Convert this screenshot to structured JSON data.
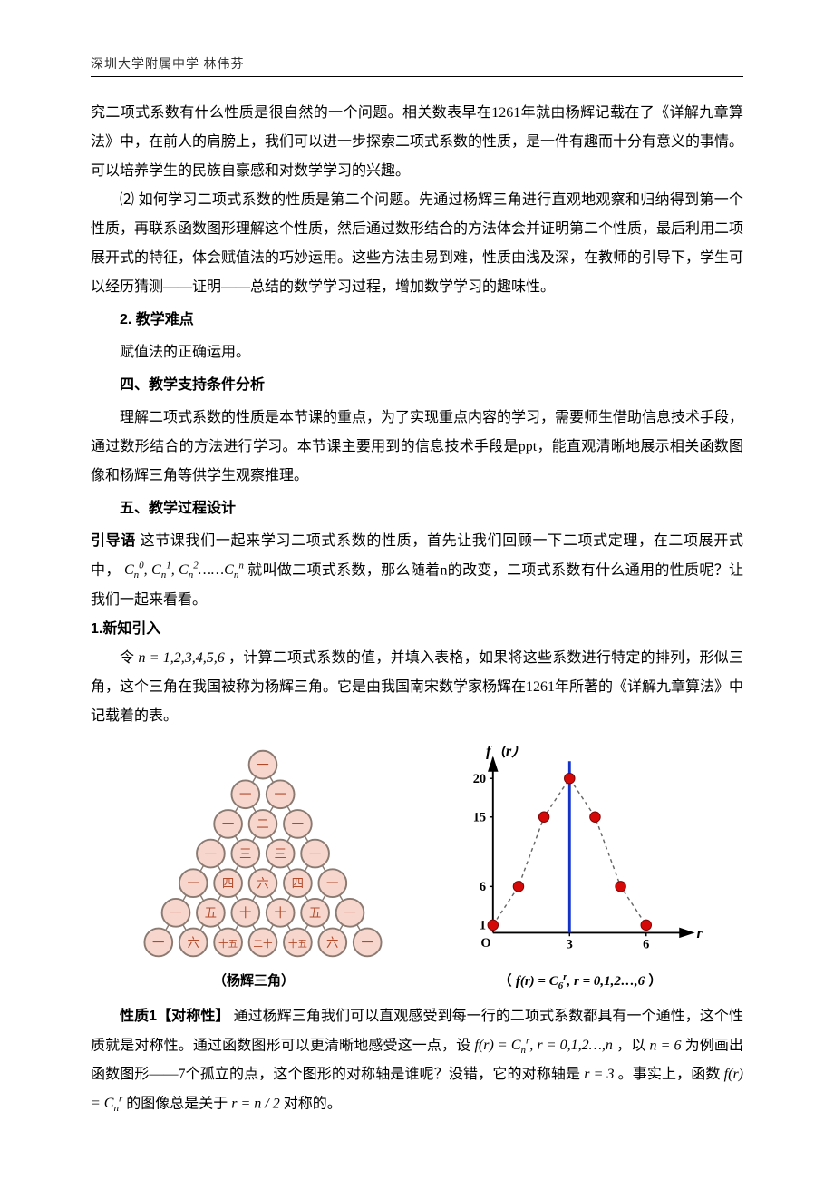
{
  "header": "深圳大学附属中学  林伟芬",
  "p1": "究二项式系数有什么性质是很自然的一个问题。相关数表早在1261年就由杨辉记载在了《详解九章算法》中，在前人的肩膀上，我们可以进一步探索二项式系数的性质，是一件有趣而十分有意义的事情。可以培养学生的民族自豪感和对数学学习的兴趣。",
  "p2": "⑵  如何学习二项式系数的性质是第二个问题。先通过杨辉三角进行直观地观察和归纳得到第一个性质，再联系函数图形理解这个性质，然后通过数形结合的方法体会并证明第二个性质，最后利用二项展开式的特征，体会赋值法的巧妙运用。这些方法由易到难，性质由浅及深，在教师的引导下，学生可以经历猜测——证明——总结的数学学习过程，增加数学学习的趣味性。",
  "s2_title": "2.  教学难点",
  "s2_body": "赋值法的正确运用。",
  "s4_title": "四、教学支持条件分析",
  "s4_body": "理解二项式系数的性质是本节课的重点，为了实现重点内容的学习，需要师生借助信息技术手段，通过数形结合的方法进行学习。本节课主要用到的信息技术手段是ppt，能直观清晰地展示相关函数图像和杨辉三角等供学生观察推理。",
  "s5_title": "五、教学过程设计",
  "lead_label": "引导语",
  "lead_a": " 这节课我们一起来学习二项式系数的性质，首先让我们回顾一下二项式定理，在二项展开式中， ",
  "lead_b": " 就叫做二项式系数，那么随着n的改变，二项式系数有什么通用的性质呢？让我们一起来看看。",
  "newknow_title": "1.新知引入",
  "new_a": "令 ",
  "new_b": " ，计算二项式系数的值，并填入表格，如果将这些系数进行特定的排列，形似三角，这个三角在我国被称为杨辉三角。它是由我国南宋数学家杨辉在1261年所著的《详解九章算法》中记载着的表。",
  "caption_left": "（杨辉三角）",
  "caption_right_a": "（ ",
  "caption_right_b": " ）",
  "prop_label": "性质1【对称性】",
  "prop_a": "      通过杨辉三角我们可以直观感受到每一行的二项式系数都具有一个通性，这个性质就是对称性。通过函数图形可以更清晰地感受这一点，设 ",
  "prop_b": " ，以 ",
  "prop_c": " 为例画出函数图形——7个孤立的点，这个图形的对称轴是谁呢？没错，它的对称轴是 ",
  "prop_d": " 。事实上，函数 ",
  "prop_e": " 的图像总是关于 ",
  "prop_f": " 对称的。",
  "pascal": {
    "labels": [
      "一",
      "二",
      "三",
      "四",
      "五",
      "六",
      "十",
      "十五",
      "二十"
    ],
    "node_fill": "#f7d7cd",
    "node_stroke": "#8a7a72",
    "node_r": 16,
    "text_color": "#b24a2a",
    "edge_color": "#8a7a72",
    "rows": [
      [
        [
          155,
          22,
          "一"
        ]
      ],
      [
        [
          135,
          56,
          "一"
        ],
        [
          175,
          56,
          "一"
        ]
      ],
      [
        [
          115,
          90,
          "一"
        ],
        [
          155,
          90,
          "二"
        ],
        [
          195,
          90,
          "一"
        ]
      ],
      [
        [
          95,
          124,
          "一"
        ],
        [
          135,
          124,
          "三"
        ],
        [
          175,
          124,
          "三"
        ],
        [
          215,
          124,
          "一"
        ]
      ],
      [
        [
          75,
          158,
          "一"
        ],
        [
          115,
          158,
          "四"
        ],
        [
          155,
          158,
          "六"
        ],
        [
          195,
          158,
          "四"
        ],
        [
          235,
          158,
          "一"
        ]
      ],
      [
        [
          55,
          192,
          "一"
        ],
        [
          95,
          192,
          "五"
        ],
        [
          135,
          192,
          "十"
        ],
        [
          175,
          192,
          "十"
        ],
        [
          215,
          192,
          "五"
        ],
        [
          255,
          192,
          "一"
        ]
      ],
      [
        [
          35,
          226,
          "一"
        ],
        [
          75,
          226,
          "六"
        ],
        [
          115,
          226,
          "十五"
        ],
        [
          155,
          226,
          "二十"
        ],
        [
          195,
          226,
          "十五"
        ],
        [
          235,
          226,
          "六"
        ],
        [
          275,
          226,
          "一"
        ]
      ]
    ]
  },
  "graph": {
    "axis_color": "#000000",
    "grid_bg": "#ffffff",
    "sym_line_color": "#1332c8",
    "point_fill": "#d60909",
    "point_stroke": "#7a0404",
    "dash_color": "#666666",
    "y_title": "f（r）",
    "x_title": "r",
    "y_ticks": [
      {
        "v": 1,
        "label": "1"
      },
      {
        "v": 6,
        "label": "6"
      },
      {
        "v": 15,
        "label": "15"
      },
      {
        "v": 20,
        "label": "20"
      }
    ],
    "x_ticks": [
      {
        "v": 3,
        "label": "3"
      },
      {
        "v": 6,
        "label": "6"
      }
    ],
    "origin_label": "O",
    "x_max": 7.5,
    "y_max": 22,
    "sym_x": 3,
    "points": [
      {
        "x": 0,
        "y": 1
      },
      {
        "x": 1,
        "y": 6
      },
      {
        "x": 2,
        "y": 15
      },
      {
        "x": 3,
        "y": 20
      },
      {
        "x": 4,
        "y": 15
      },
      {
        "x": 5,
        "y": 6
      },
      {
        "x": 6,
        "y": 1
      }
    ]
  }
}
